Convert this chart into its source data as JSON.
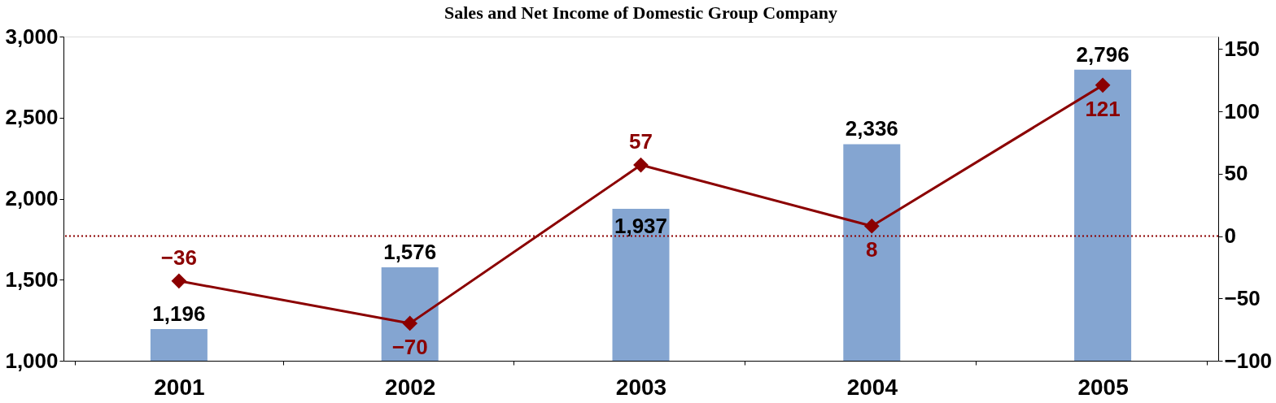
{
  "chart_data": {
    "type": "bar",
    "title": "Sales and Net Income of Domestic Group Company",
    "categories": [
      "2001",
      "2002",
      "2003",
      "2004",
      "2005"
    ],
    "series": [
      {
        "color": "#84a5d1",
        "values": [
          1196,
          1576,
          1937,
          2336,
          2796
        ],
        "value_labels": [
          "1,196",
          "1,576",
          "1,937",
          "2,336",
          "2,796"
        ]
      },
      {
        "type": "line",
        "axis": "y2",
        "color": "#8b0000",
        "values": [
          -36,
          -70,
          57,
          8,
          121
        ],
        "value_labels": [
          "−36",
          "−70",
          "57",
          "8",
          "121"
        ]
      }
    ],
    "ylim": [
      1000,
      3000
    ],
    "yticks": [
      {
        "value": 1000,
        "label": "1,000"
      },
      {
        "value": 1500,
        "label": "1,500"
      },
      {
        "value": 2000,
        "label": "2,000"
      },
      {
        "value": 2500,
        "label": "2,500"
      },
      {
        "value": 3000,
        "label": "3,000"
      }
    ],
    "y2lim": [
      -100,
      160
    ],
    "y2ticks": [
      {
        "value": -100,
        "label": "−100"
      },
      {
        "value": -50,
        "label": "−50"
      },
      0,
      50,
      100,
      150
    ],
    "ref_lines": [
      {
        "axis": "y2",
        "value": 0,
        "color": "#8b0000",
        "line_style": "dotted"
      }
    ],
    "marker": "diamond",
    "grid": false
  }
}
